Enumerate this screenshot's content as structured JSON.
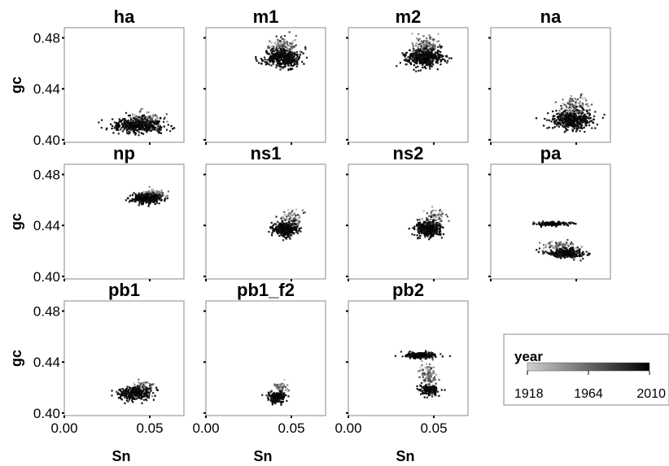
{
  "chart_data": {
    "type": "scatter",
    "facets": [
      "ha",
      "m1",
      "m2",
      "na",
      "np",
      "ns1",
      "ns2",
      "pa",
      "pb1",
      "pb1_f2",
      "pb2"
    ],
    "xlabel": "Sn",
    "ylabel": "gc",
    "xlim": [
      0.0,
      0.07
    ],
    "ylim": [
      0.398,
      0.488
    ],
    "x_ticks": [
      "0.00",
      "0.05"
    ],
    "y_ticks": [
      "0.40",
      "0.44",
      "0.48"
    ],
    "x_tick_values": [
      0.0,
      0.05
    ],
    "y_tick_values": [
      0.4,
      0.44,
      0.48
    ],
    "color_scale": {
      "title": "year",
      "min": 1918,
      "max": 2010,
      "ticks": [
        "1918",
        "1964",
        "2010"
      ],
      "tick_values": [
        1918,
        1964,
        2010
      ],
      "low_color": "#d0d0d0",
      "high_color": "#000000"
    },
    "clusters": {
      "ha": [
        {
          "cx": 0.043,
          "cy": 0.412,
          "sx": 0.0075,
          "sy": 0.0028,
          "n": 420,
          "ymin": 1990,
          "ymax": 2010
        },
        {
          "cx": 0.047,
          "cy": 0.416,
          "sx": 0.004,
          "sy": 0.003,
          "n": 120,
          "ymin": 1918,
          "ymax": 1985
        }
      ],
      "m1": [
        {
          "cx": 0.044,
          "cy": 0.465,
          "sx": 0.0055,
          "sy": 0.0035,
          "n": 420,
          "ymin": 1990,
          "ymax": 2010
        },
        {
          "cx": 0.045,
          "cy": 0.474,
          "sx": 0.004,
          "sy": 0.0035,
          "n": 130,
          "ymin": 1918,
          "ymax": 1985
        }
      ],
      "m2": [
        {
          "cx": 0.044,
          "cy": 0.465,
          "sx": 0.0055,
          "sy": 0.0035,
          "n": 420,
          "ymin": 1990,
          "ymax": 2010
        },
        {
          "cx": 0.045,
          "cy": 0.474,
          "sx": 0.004,
          "sy": 0.0035,
          "n": 130,
          "ymin": 1918,
          "ymax": 1985
        }
      ],
      "na": [
        {
          "cx": 0.047,
          "cy": 0.416,
          "sx": 0.0065,
          "sy": 0.0035,
          "n": 420,
          "ymin": 1990,
          "ymax": 2010
        },
        {
          "cx": 0.049,
          "cy": 0.426,
          "sx": 0.004,
          "sy": 0.0045,
          "n": 140,
          "ymin": 1918,
          "ymax": 1985
        }
      ],
      "np": [
        {
          "cx": 0.048,
          "cy": 0.462,
          "sx": 0.004,
          "sy": 0.0018,
          "n": 320,
          "ymin": 1990,
          "ymax": 2010
        },
        {
          "cx": 0.052,
          "cy": 0.465,
          "sx": 0.003,
          "sy": 0.002,
          "n": 80,
          "ymin": 1918,
          "ymax": 1985
        }
      ],
      "ns1": [
        {
          "cx": 0.046,
          "cy": 0.438,
          "sx": 0.0035,
          "sy": 0.0028,
          "n": 360,
          "ymin": 1990,
          "ymax": 2010
        },
        {
          "cx": 0.05,
          "cy": 0.446,
          "sx": 0.003,
          "sy": 0.004,
          "n": 80,
          "ymin": 1918,
          "ymax": 1985
        }
      ],
      "ns2": [
        {
          "cx": 0.046,
          "cy": 0.438,
          "sx": 0.0035,
          "sy": 0.0028,
          "n": 360,
          "ymin": 1990,
          "ymax": 2010
        },
        {
          "cx": 0.05,
          "cy": 0.446,
          "sx": 0.003,
          "sy": 0.004,
          "n": 80,
          "ymin": 1918,
          "ymax": 1985
        }
      ],
      "pa": [
        {
          "cx": 0.037,
          "cy": 0.442,
          "sx": 0.0045,
          "sy": 0.0008,
          "n": 160,
          "ymin": 1990,
          "ymax": 2010
        },
        {
          "cx": 0.043,
          "cy": 0.419,
          "sx": 0.006,
          "sy": 0.0018,
          "n": 300,
          "ymin": 1990,
          "ymax": 2010
        },
        {
          "cx": 0.04,
          "cy": 0.425,
          "sx": 0.005,
          "sy": 0.002,
          "n": 80,
          "ymin": 1918,
          "ymax": 1985
        }
      ],
      "pb1": [
        {
          "cx": 0.041,
          "cy": 0.416,
          "sx": 0.0045,
          "sy": 0.0025,
          "n": 300,
          "ymin": 1990,
          "ymax": 2010
        },
        {
          "cx": 0.046,
          "cy": 0.421,
          "sx": 0.003,
          "sy": 0.0025,
          "n": 60,
          "ymin": 1918,
          "ymax": 1985
        }
      ],
      "pb1_f2": [
        {
          "cx": 0.041,
          "cy": 0.413,
          "sx": 0.0025,
          "sy": 0.002,
          "n": 180,
          "ymin": 1990,
          "ymax": 2010
        },
        {
          "cx": 0.043,
          "cy": 0.42,
          "sx": 0.0025,
          "sy": 0.002,
          "n": 50,
          "ymin": 1918,
          "ymax": 1985
        }
      ],
      "pb2": [
        {
          "cx": 0.042,
          "cy": 0.446,
          "sx": 0.0045,
          "sy": 0.0012,
          "n": 220,
          "ymin": 1990,
          "ymax": 2010
        },
        {
          "cx": 0.047,
          "cy": 0.419,
          "sx": 0.0028,
          "sy": 0.002,
          "n": 160,
          "ymin": 1990,
          "ymax": 2010
        },
        {
          "cx": 0.047,
          "cy": 0.431,
          "sx": 0.0025,
          "sy": 0.005,
          "n": 100,
          "ymin": 1918,
          "ymax": 1985
        }
      ]
    }
  }
}
